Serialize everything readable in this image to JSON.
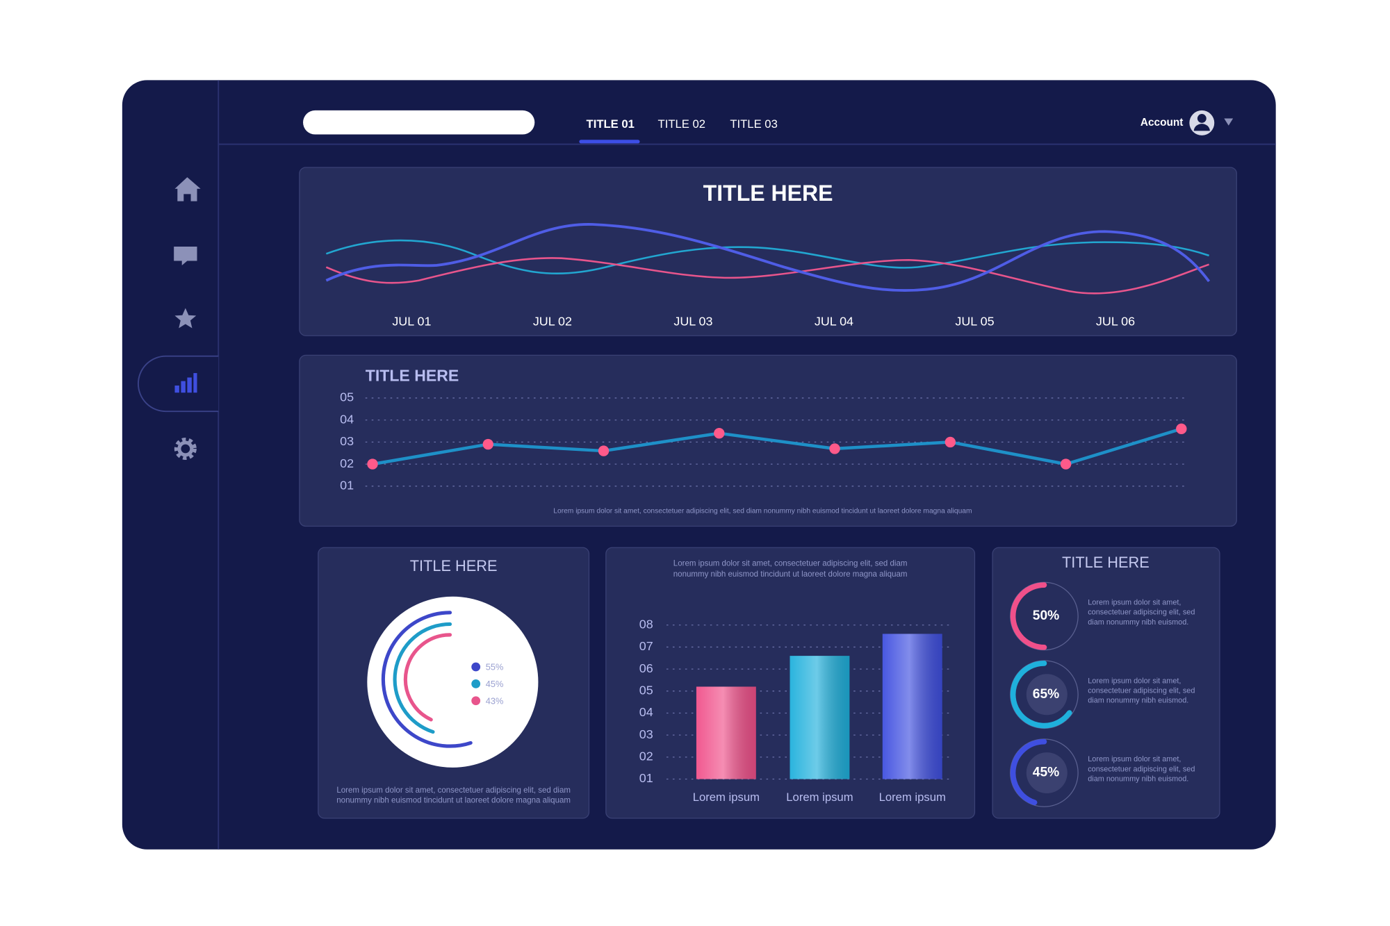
{
  "nav": {
    "tabs": [
      "TITLE 01",
      "TITLE 02",
      "TITLE 03"
    ],
    "account": "Account"
  },
  "wave_panel": {
    "title": "TITLE HERE",
    "categories": [
      "JUL 01",
      "JUL 02",
      "JUL 03",
      "JUL 04",
      "JUL 05",
      "JUL 06"
    ]
  },
  "chart_data": [
    {
      "type": "line",
      "title": "TITLE HERE",
      "categories": [
        null,
        null,
        null,
        null,
        null,
        null,
        null,
        null
      ],
      "values": [
        2.0,
        2.9,
        2.6,
        3.4,
        2.7,
        3.0,
        2.0,
        3.6
      ],
      "color": "#1e90c8",
      "marker_color": "#ff5a8a",
      "ylim": [
        1,
        5
      ],
      "yticks": [
        {
          "value": 1,
          "label": "01"
        },
        {
          "value": 2,
          "label": "02"
        },
        {
          "value": 3,
          "label": "03"
        },
        {
          "value": 4,
          "label": "04"
        },
        {
          "value": 5,
          "label": "05"
        }
      ],
      "grid": true,
      "caption": "Lorem ipsum dolor sit amet, consectetuer adipiscing elit, sed diam nonummy nibh euismod tincidunt ut laoreet dolore magna aliquam"
    },
    {
      "type": "arc",
      "title": "TITLE HERE",
      "values": [
        55,
        45,
        43
      ],
      "value_labels": [
        "55%",
        "45%",
        "43%"
      ],
      "colors": [
        "#3d47c9",
        "#1e9cc8",
        "#e8558c"
      ],
      "caption": [
        "Lorem ipsum dolor sit amet, consectetuer adipiscing elit, sed diam",
        "nonummy nibh euismod tincidunt ut laoreet dolore magna aliquam"
      ]
    },
    {
      "type": "bar",
      "caption": [
        "Lorem ipsum dolor sit amet, consectetuer adipiscing elit, sed diam",
        "nonummy nibh euismod tincidunt ut laoreet dolore magna aliquam"
      ],
      "categories": [
        "Lorem ipsum",
        "Lorem ipsum",
        "Lorem ipsum"
      ],
      "values": [
        5.2,
        6.6,
        7.6
      ],
      "colors": [
        "#f0508a",
        "#1fb0dc",
        "#3f4fe0"
      ],
      "ylim": [
        1,
        8
      ],
      "yticks": [
        {
          "value": 1,
          "label": "01"
        },
        {
          "value": 2,
          "label": "02"
        },
        {
          "value": 3,
          "label": "03"
        },
        {
          "value": 4,
          "label": "04"
        },
        {
          "value": 5,
          "label": "05"
        },
        {
          "value": 6,
          "label": "06"
        },
        {
          "value": 7,
          "label": "07"
        },
        {
          "value": 8,
          "label": "08"
        }
      ],
      "grid": true
    },
    {
      "type": "donut",
      "title": "TITLE HERE",
      "values": [
        50,
        65,
        45
      ],
      "value_labels": [
        "50%",
        "65%",
        "45%"
      ],
      "colors": [
        "#f0508a",
        "#1fb0dc",
        "#3f4fe0"
      ],
      "descriptions": [
        [
          "Lorem ipsum dolor sit amet,",
          "consectetuer adipiscing elit, sed",
          "diam nonummy nibh euismod."
        ],
        [
          "Lorem ipsum dolor sit amet,",
          "consectetuer adipiscing elit, sed",
          "diam nonummy nibh euismod."
        ],
        [
          "Lorem ipsum dolor sit amet,",
          "consectetuer adipiscing elit, sed",
          "diam nonummy nibh euismod."
        ]
      ]
    }
  ]
}
